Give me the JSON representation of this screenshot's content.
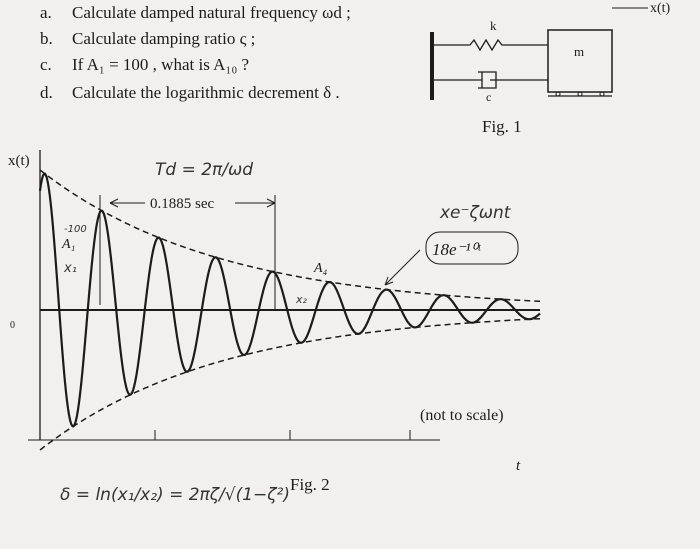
{
  "questions": [
    {
      "label": "a.",
      "text": "Calculate damped natural frequency ωd ;"
    },
    {
      "label": "b.",
      "text": "Calculate damping ratio ς ;"
    },
    {
      "label": "c.",
      "text": "If A₁ = 100 , what is A₁₀ ?"
    },
    {
      "label": "d.",
      "text": "Calculate the logarithmic decrement δ ."
    }
  ],
  "fig1": {
    "spring": "k",
    "damper": "c",
    "mass": "m",
    "displacement": "x(t)",
    "caption": "Fig. 1"
  },
  "fig2": {
    "y_axis": "x(t)",
    "origin": "0",
    "period": "0.1885 sec",
    "a1": "A₁",
    "a4": "A₄",
    "envelope": "18e⁻¹⁰ᵗ",
    "note": "(not to scale)",
    "x_axis": "t",
    "caption": "Fig. 2"
  },
  "handwriting": {
    "td": "Td = 2π/ωd",
    "minus100": "-100",
    "x1": "x₁",
    "x2": "x₂",
    "xe": "xe⁻ζωnt",
    "delta": "δ = ln(x₁/x₂) = 2πζ/√(1−ζ²)"
  }
}
